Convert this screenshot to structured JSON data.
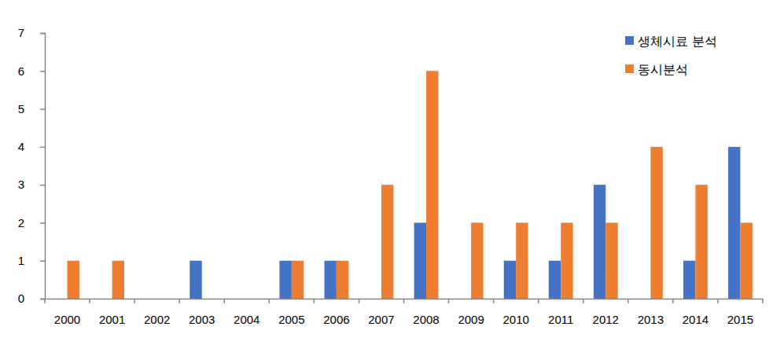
{
  "chart_data": {
    "type": "bar",
    "categories": [
      "2000",
      "2001",
      "2002",
      "2003",
      "2004",
      "2005",
      "2006",
      "2007",
      "2008",
      "2009",
      "2010",
      "2011",
      "2012",
      "2013",
      "2014",
      "2015"
    ],
    "series": [
      {
        "name": "생체시료 분석",
        "color": "#4472c4",
        "values": [
          0,
          0,
          0,
          1,
          0,
          1,
          1,
          0,
          2,
          0,
          1,
          1,
          3,
          0,
          1,
          4
        ]
      },
      {
        "name": "동시분석",
        "color": "#ed7d31",
        "values": [
          1,
          1,
          0,
          0,
          0,
          1,
          1,
          3,
          6,
          2,
          2,
          2,
          2,
          4,
          3,
          2
        ]
      }
    ],
    "ylim": [
      0,
      7
    ],
    "yticks": [
      0,
      1,
      2,
      3,
      4,
      5,
      6,
      7
    ],
    "grid": false,
    "legend": "top-right"
  }
}
